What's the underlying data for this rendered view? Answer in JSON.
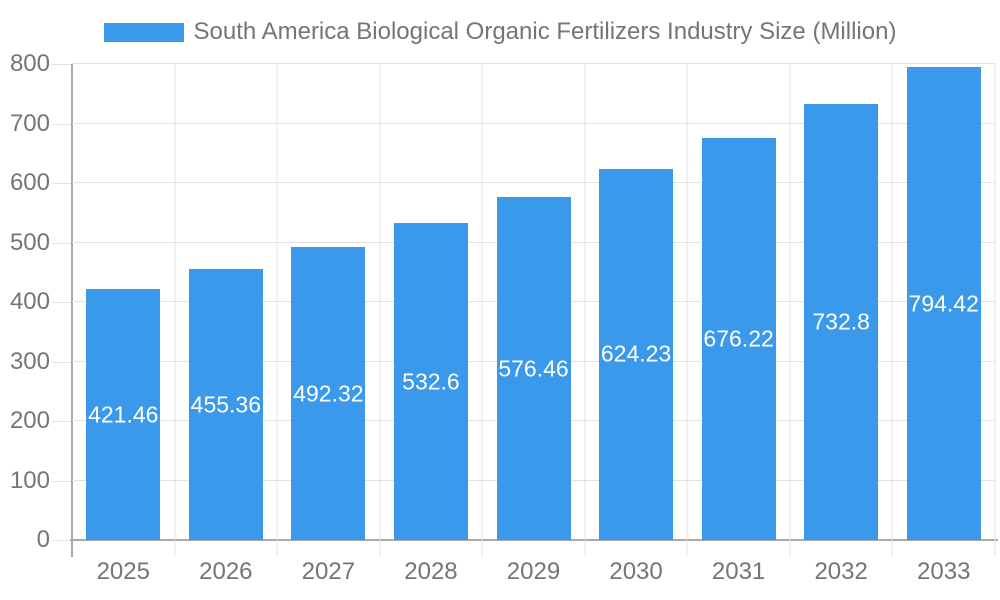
{
  "chart_data": {
    "type": "bar",
    "title": "South America Biological Organic Fertilizers Industry Size (Million)",
    "categories": [
      "2025",
      "2026",
      "2027",
      "2028",
      "2029",
      "2030",
      "2031",
      "2032",
      "2033"
    ],
    "values": [
      421.46,
      455.36,
      492.32,
      532.6,
      576.46,
      624.23,
      676.22,
      732.8,
      794.42
    ],
    "value_labels": [
      "421.46",
      "455.36",
      "492.32",
      "532.6",
      "576.46",
      "624.23",
      "676.22",
      "732.8",
      "794.42"
    ],
    "series_name": "South America Biological Organic Fertilizers Industry Size (Million)",
    "xlabel": "",
    "ylabel": "",
    "ylim": [
      0,
      800
    ],
    "yticks": [
      0,
      100,
      200,
      300,
      400,
      500,
      600,
      700,
      800
    ],
    "grid": true,
    "legend_position": "top-center",
    "colors": {
      "bar": "#3b99ec",
      "bar_label": "#ffffff",
      "axis_text": "#757575",
      "grid": "#e2e2e2",
      "axis_line": "#a9a9a9",
      "background": "#ffffff"
    }
  }
}
